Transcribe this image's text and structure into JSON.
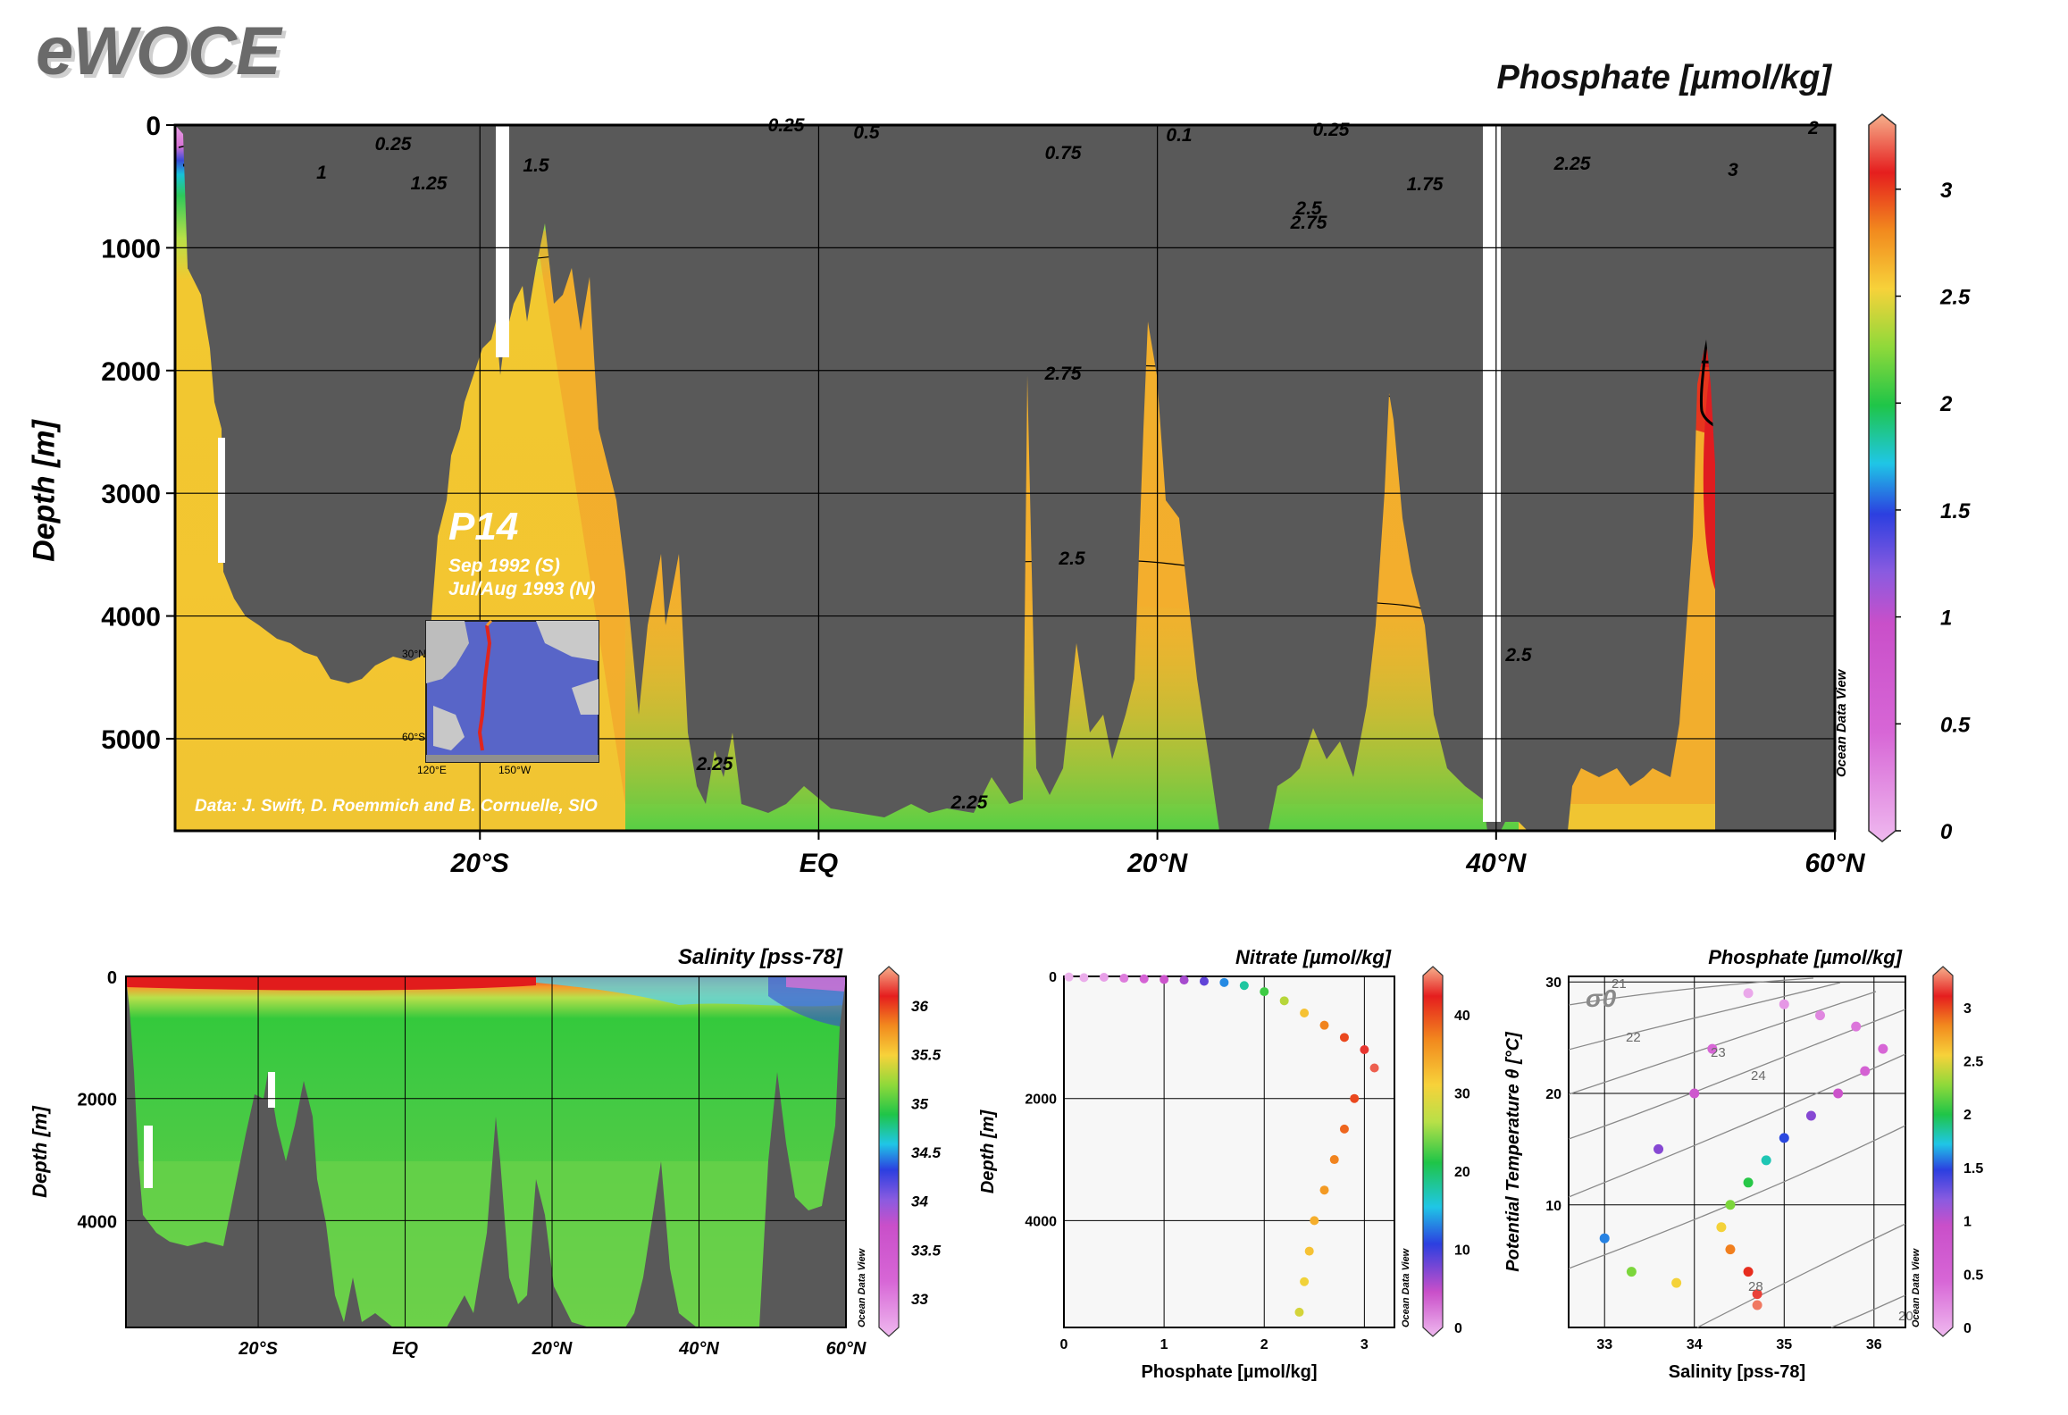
{
  "logo": "eWOCE",
  "main": {
    "title": "Phosphate [µmol/kg]",
    "ylabel": "Depth [m]",
    "section_name": "P14",
    "section_line1": "Sep 1992 (S)",
    "section_line2": "Jul/Aug 1993 (N)",
    "credit": "Data: J. Swift, D. Roemmich and B. Cornuelle, SIO",
    "inset_labels": [
      "30°N",
      "60°S",
      "120°E",
      "150°W"
    ],
    "watermark": "Ocean Data View"
  },
  "chart_data": [
    {
      "type": "heatmap",
      "title": "Phosphate [µmol/kg]",
      "ylabel": "Depth [m]",
      "x_ticks": [
        "20°S",
        "EQ",
        "20°N",
        "40°N",
        "60°N"
      ],
      "x_tick_values": [
        -20,
        0,
        20,
        40,
        60
      ],
      "xlim": [
        -38,
        60
      ],
      "y_ticks": [
        "0",
        "1000",
        "2000",
        "3000",
        "4000",
        "5000"
      ],
      "y_tick_values": [
        0,
        1000,
        2000,
        3000,
        4000,
        5000
      ],
      "ylim": [
        5750,
        0
      ],
      "colorbar_ticks": [
        "0",
        "0.5",
        "1",
        "1.5",
        "2",
        "2.5",
        "3"
      ],
      "colorbar_values": [
        0,
        0.5,
        1,
        1.5,
        2,
        2.5,
        3
      ],
      "colorbar_range": [
        0,
        3.3
      ],
      "contour_labels": [
        "0.25",
        "0.25",
        "0.5",
        "0.1",
        "0.25",
        "1",
        "1.25",
        "1.5",
        "0.75",
        "1.75",
        "2.25",
        "3",
        "2.5",
        "2.75",
        "2.75",
        "2.5",
        "2.5",
        "2.25",
        "2.25",
        "2"
      ]
    },
    {
      "type": "heatmap",
      "title": "Salinity [pss-78]",
      "ylabel": "Depth [m]",
      "x_ticks": [
        "20°S",
        "EQ",
        "20°N",
        "40°N",
        "60°N"
      ],
      "x_tick_values": [
        -20,
        0,
        20,
        40,
        60
      ],
      "xlim": [
        -38,
        60
      ],
      "y_ticks": [
        "0",
        "2000",
        "4000"
      ],
      "y_tick_values": [
        0,
        2000,
        4000
      ],
      "ylim": [
        5750,
        0
      ],
      "colorbar_ticks": [
        "33",
        "33.5",
        "34",
        "34.5",
        "35",
        "35.5",
        "36"
      ],
      "colorbar_values": [
        33,
        33.5,
        34,
        34.5,
        35,
        35.5,
        36
      ],
      "colorbar_range": [
        32.7,
        36.3
      ]
    },
    {
      "type": "scatter",
      "title": "Nitrate [µmol/kg]",
      "xlabel": "Phosphate [µmol/kg]",
      "ylabel": "Depth [m]",
      "x_ticks": [
        "0",
        "1",
        "2",
        "3"
      ],
      "x_tick_values": [
        0,
        1,
        2,
        3
      ],
      "xlim": [
        0,
        3.3
      ],
      "y_ticks": [
        "0",
        "2000",
        "4000"
      ],
      "y_tick_values": [
        0,
        2000,
        4000
      ],
      "ylim": [
        5750,
        0
      ],
      "colorbar_ticks": [
        "0",
        "10",
        "20",
        "30",
        "40"
      ],
      "colorbar_values": [
        0,
        10,
        20,
        30,
        40
      ],
      "colorbar_range": [
        0,
        45
      ],
      "points": [
        [
          0.05,
          10,
          0.5
        ],
        [
          0.2,
          20,
          1
        ],
        [
          0.4,
          15,
          2
        ],
        [
          0.6,
          30,
          5
        ],
        [
          0.8,
          40,
          8
        ],
        [
          1.0,
          50,
          12
        ],
        [
          1.2,
          60,
          15
        ],
        [
          1.4,
          80,
          18
        ],
        [
          1.6,
          100,
          22
        ],
        [
          1.8,
          150,
          25
        ],
        [
          2.0,
          250,
          28
        ],
        [
          2.2,
          400,
          32
        ],
        [
          2.4,
          600,
          35
        ],
        [
          2.6,
          800,
          38
        ],
        [
          2.8,
          1000,
          40
        ],
        [
          3.0,
          1200,
          42
        ],
        [
          3.1,
          1500,
          43
        ],
        [
          2.9,
          2000,
          40
        ],
        [
          2.8,
          2500,
          39
        ],
        [
          2.7,
          3000,
          38
        ],
        [
          2.6,
          3500,
          37
        ],
        [
          2.5,
          4000,
          36
        ],
        [
          2.45,
          4500,
          35
        ],
        [
          2.4,
          5000,
          34
        ],
        [
          2.35,
          5500,
          33
        ]
      ]
    },
    {
      "type": "scatter",
      "title": "Phosphate [µmol/kg]",
      "xlabel": "Salinity [pss-78]",
      "ylabel": "Potential Temperature θ [°C]",
      "x_ticks": [
        "33",
        "34",
        "35",
        "36"
      ],
      "x_tick_values": [
        33,
        34,
        35,
        36
      ],
      "xlim": [
        32.6,
        36.35
      ],
      "y_ticks": [
        "10",
        "20",
        "30"
      ],
      "y_tick_values": [
        10,
        20,
        30
      ],
      "ylim": [
        -1,
        30.5
      ],
      "sigma_label": "σ0",
      "isopycnal_labels": [
        "21",
        "22",
        "23",
        "24",
        "28",
        "20"
      ],
      "colorbar_ticks": [
        "0",
        "0.5",
        "1",
        "1.5",
        "2",
        "2.5",
        "3"
      ],
      "colorbar_values": [
        0,
        0.5,
        1,
        1.5,
        2,
        2.5,
        3
      ],
      "colorbar_range": [
        0,
        3.3
      ],
      "points": [
        [
          34.6,
          29,
          0.1
        ],
        [
          35.0,
          28,
          0.2
        ],
        [
          35.4,
          27,
          0.3
        ],
        [
          35.8,
          26,
          0.4
        ],
        [
          36.1,
          24,
          0.5
        ],
        [
          35.9,
          22,
          0.6
        ],
        [
          35.6,
          20,
          0.9
        ],
        [
          35.3,
          18,
          1.2
        ],
        [
          35.0,
          16,
          1.5
        ],
        [
          34.8,
          14,
          1.8
        ],
        [
          34.6,
          12,
          2.0
        ],
        [
          34.4,
          10,
          2.2
        ],
        [
          34.3,
          8,
          2.5
        ],
        [
          34.4,
          6,
          2.8
        ],
        [
          34.6,
          4,
          3.0
        ],
        [
          34.7,
          2,
          3.1
        ],
        [
          34.7,
          1,
          3.2
        ],
        [
          33.8,
          3,
          2.5
        ],
        [
          33.3,
          4,
          2.2
        ],
        [
          33.0,
          7,
          1.6
        ],
        [
          34.2,
          24,
          0.5
        ],
        [
          34.0,
          20,
          0.8
        ],
        [
          33.6,
          15,
          1.2
        ]
      ]
    }
  ],
  "colors": {
    "land": "#595959",
    "background": "#ffffff",
    "grid": "#000000"
  }
}
